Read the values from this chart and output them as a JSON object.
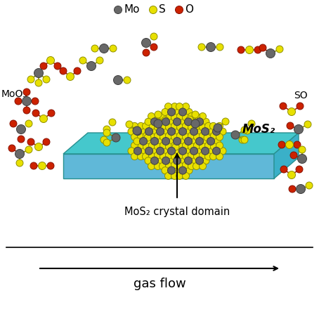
{
  "mo_color": "#686868",
  "mo_edge": "#404040",
  "s_color": "#e8e000",
  "s_edge": "#909000",
  "o_color": "#cc2200",
  "o_edge": "#881100",
  "substrate_top_color": "#45c8cc",
  "substrate_front_color": "#60b8d8",
  "substrate_right_color": "#3ab0c8",
  "substrate_edge_color": "#289090",
  "bond_color": "#909000",
  "bond_color2": "#808080",
  "dashed_color": "#5588bb",
  "label_mos2": "MoS₂",
  "label_crystal": "MoS₂ crystal domain",
  "label_moo3": "MoO₃",
  "label_so": "SO",
  "label_gas_flow": "gas flow",
  "bg_color": "#ffffff"
}
